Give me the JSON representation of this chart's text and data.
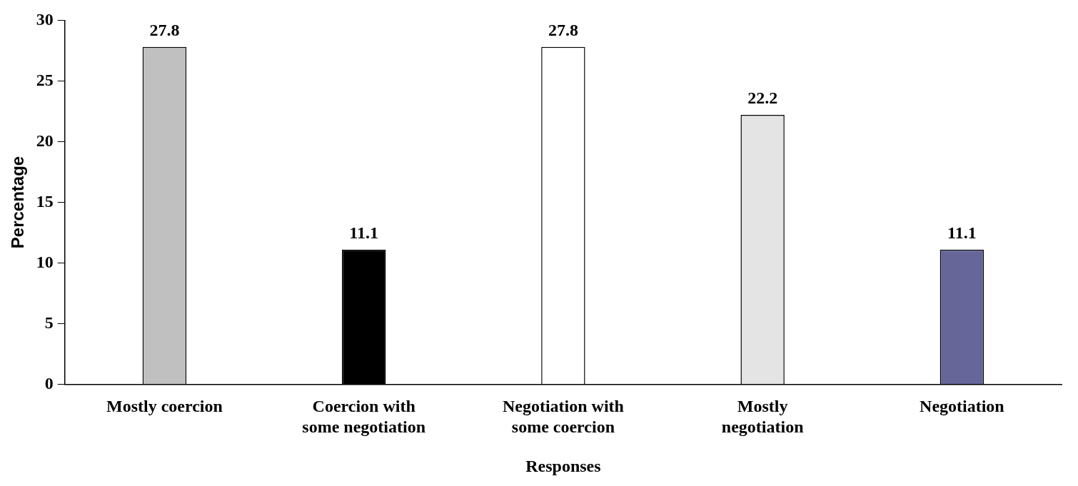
{
  "chart_data": {
    "type": "bar",
    "xlabel": "Responses",
    "ylabel": "Percentage",
    "categories": [
      "Mostly coercion",
      "Coercion with some negotiation",
      "Negotiation with some coercion",
      "Mostly negotiation",
      "Negotiation"
    ],
    "values": [
      27.8,
      11.1,
      27.8,
      22.2,
      11.1
    ],
    "colors": [
      "#c0c0c0",
      "#000000",
      "#ffffff",
      "#e4e4e4",
      "#666699"
    ],
    "ylim": [
      0,
      30
    ],
    "yticks": [
      0,
      5,
      10,
      15,
      20,
      25,
      30
    ],
    "grid": false,
    "legend": false,
    "data_labels": true
  }
}
